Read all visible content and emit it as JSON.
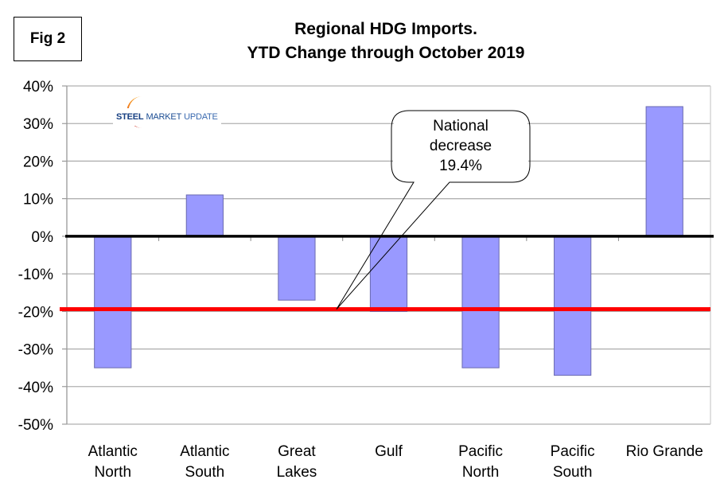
{
  "figure_label": "Fig 2",
  "logo": {
    "steel": "STEEL",
    "market": "MARKET",
    "update": "UPDATE"
  },
  "callout": {
    "lines": [
      "National",
      "decrease",
      "19.4%"
    ]
  },
  "colors": {
    "bar_fill": "#9999ff",
    "bar_stroke": "#6a6ab0",
    "zero_line": "#000000",
    "reference_line": "#ff0000",
    "grid": "#b0b0b0"
  },
  "chart_data": {
    "type": "bar",
    "title": "Regional HDG Imports.",
    "subtitle": "YTD Change through October 2019",
    "xlabel": "",
    "ylabel": "",
    "categories": [
      [
        "Atlantic",
        "North"
      ],
      [
        "Atlantic",
        "South"
      ],
      [
        "Great",
        "Lakes"
      ],
      [
        "Gulf"
      ],
      [
        "Pacific",
        "North"
      ],
      [
        "Pacific",
        "South"
      ],
      [
        "Rio Grande"
      ]
    ],
    "series": [
      {
        "name": "YTD change",
        "values": [
          -35.0,
          11.0,
          -17.0,
          -20.0,
          -35.0,
          -37.0,
          34.5
        ]
      }
    ],
    "ylim": [
      -50,
      40
    ],
    "ytick_step": 10,
    "ytick_labels": [
      "40%",
      "30%",
      "20%",
      "10%",
      "0%",
      "-10%",
      "-20%",
      "-30%",
      "-40%",
      "-50%"
    ],
    "grid": true,
    "reference_line": {
      "value": -19.4,
      "label": "National decrease 19.4%"
    },
    "legend": "none"
  }
}
